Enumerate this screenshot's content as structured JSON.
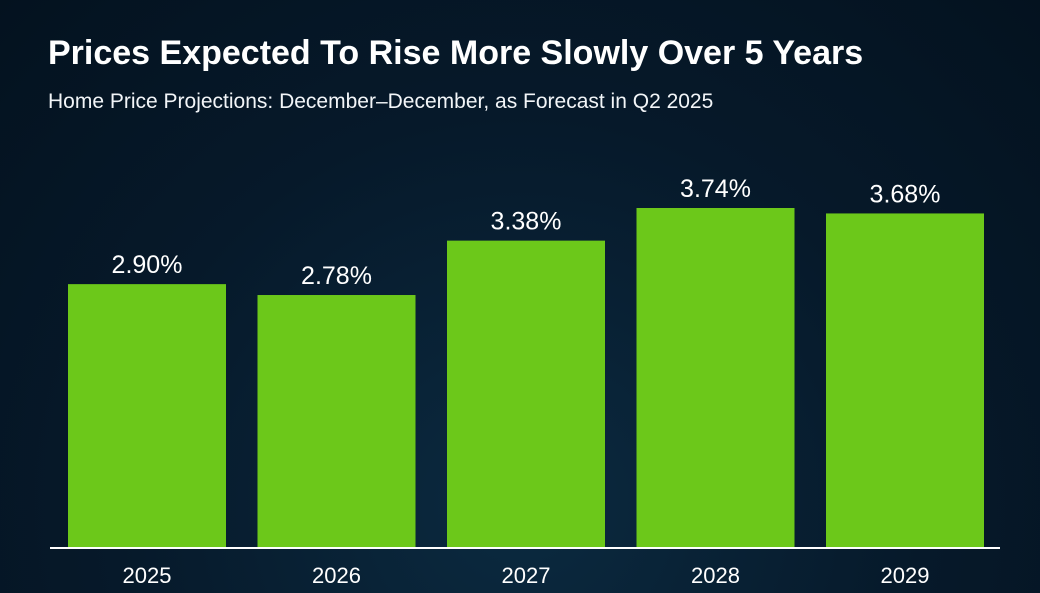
{
  "chart_data": {
    "type": "bar",
    "title": "Prices Expected To Rise More Slowly Over 5 Years",
    "subtitle": "Home Price Projections: December–December, as Forecast in Q2 2025",
    "categories": [
      "2025",
      "2026",
      "2027",
      "2028",
      "2029"
    ],
    "values": [
      2.9,
      2.78,
      3.38,
      3.74,
      3.68
    ],
    "data_labels": [
      "2.90%",
      "2.78%",
      "3.38%",
      "3.74%",
      "3.68%"
    ],
    "xlabel": "",
    "ylabel": "",
    "ylim": [
      0,
      4.2
    ],
    "grid": false,
    "legend": "none",
    "bar_color": "#6cc81a",
    "axis_color": "#ffffff"
  }
}
